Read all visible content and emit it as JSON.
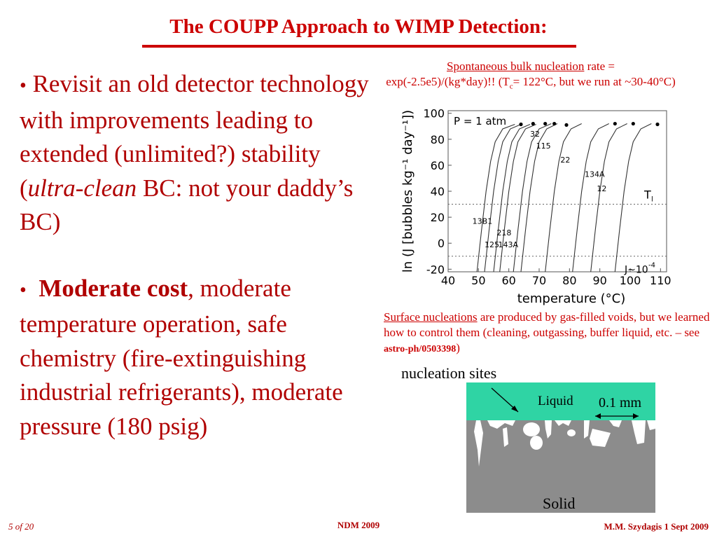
{
  "title": "The COUPP Approach to WIMP Detection:",
  "left": {
    "bullet1_bullet": "•",
    "bullet1_a": " Revisit an old detector technology with improvements leading to extended (unlimited?) stability (",
    "bullet1_ital": "ultra-clean",
    "bullet1_b": " BC: not your daddy’s BC)",
    "bullet2_bullet": "•",
    "bullet2_bold": "Moderate cost",
    "bullet2_rest": ", moderate temperature operation, safe chemistry (fire-extinguishing industrial refrigerants), moderate pressure (180 psig)"
  },
  "caption_top": {
    "link": "Spontaneous bulk nucleation",
    "rest1": " rate  =",
    "line2a": "exp(-2.5e5)/(kg*day)!! (T",
    "line2_sub": "c",
    "line2b": "= 122°C, but we run at ~30-40°C)"
  },
  "caption_mid": {
    "link": "Surface nucleations",
    "rest": " are produced by gas-filled voids, but we learned how to control them (cleaning, outgassing, buffer liquid, etc. – see ",
    "ref": "astro-ph/0503398",
    "close": ")"
  },
  "chart_data": {
    "type": "line",
    "xlabel": "temperature (°C)",
    "ylabel": "ln (J [bubbles kg⁻¹ day⁻¹])",
    "xlim": [
      40,
      112
    ],
    "ylim": [
      -22,
      102
    ],
    "xticks": [
      "40",
      "50",
      "60",
      "70",
      "80",
      "90",
      "100",
      "110"
    ],
    "yticks": [
      "100",
      "80",
      "60",
      "40",
      "20",
      "0",
      "-20"
    ],
    "annotations": {
      "p": "P = 1 atm",
      "tl": "T",
      "tl_sub": "l",
      "j": "J~10",
      "j_sup": "-4"
    },
    "hlines": [
      30,
      -10
    ],
    "series": [
      {
        "name": "13B1",
        "x": [
          49.5,
          51,
          52.5,
          54,
          55.5,
          58,
          62
        ],
        "y": [
          -22,
          10,
          40,
          63,
          78,
          88,
          91.5
        ]
      },
      {
        "name": "125",
        "x": [
          52,
          53.5,
          55,
          56.5,
          58,
          60.5,
          64
        ],
        "y": [
          -22,
          10,
          40,
          63,
          78,
          88,
          91.5
        ]
      },
      {
        "name": "218",
        "x": [
          55,
          56.5,
          58,
          59.5,
          61,
          63.5,
          67
        ],
        "y": [
          -22,
          10,
          40,
          63,
          78,
          88,
          91.5
        ]
      },
      {
        "name": "143A",
        "x": [
          57,
          58.5,
          60,
          61.5,
          63,
          65.5,
          69
        ],
        "y": [
          -22,
          10,
          40,
          63,
          78,
          88,
          91.5
        ]
      },
      {
        "name": "32",
        "x": [
          61.5,
          63,
          64.5,
          66,
          67.5,
          70,
          74
        ],
        "y": [
          -22,
          10,
          40,
          63,
          78,
          88,
          92
        ]
      },
      {
        "name": "115",
        "x": [
          64,
          65.5,
          67,
          68.5,
          70,
          72.5,
          76
        ],
        "y": [
          -22,
          10,
          40,
          63,
          78,
          88,
          92
        ]
      },
      {
        "name": "22",
        "x": [
          72,
          73.5,
          75,
          76.5,
          78,
          80.5,
          84
        ],
        "y": [
          -22,
          10,
          40,
          63,
          78,
          88,
          92
        ]
      },
      {
        "name": "134A",
        "x": [
          81,
          82.5,
          84,
          85.5,
          87,
          89.5,
          93
        ],
        "y": [
          -22,
          10,
          40,
          63,
          78,
          88,
          92
        ]
      },
      {
        "name": "12",
        "x": [
          87,
          88.5,
          90,
          91.5,
          93,
          95.5,
          99
        ],
        "y": [
          -22,
          10,
          40,
          63,
          78,
          88,
          92
        ]
      },
      {
        "name": "",
        "x": [
          95,
          96.5,
          98,
          99.5,
          101,
          103.5,
          107
        ],
        "y": [
          -22,
          10,
          40,
          63,
          78,
          88,
          92
        ]
      }
    ],
    "endpoints": [
      [
        64,
        91.5
      ],
      [
        68,
        92
      ],
      [
        72,
        92
      ],
      [
        75,
        92
      ],
      [
        79,
        91
      ],
      [
        95,
        92
      ],
      [
        101,
        92
      ],
      [
        109,
        91.5
      ]
    ],
    "curve_labels": [
      {
        "text": "13B1",
        "x": 48,
        "y": 15
      },
      {
        "text": "125",
        "x": 52,
        "y": -3
      },
      {
        "text": "218",
        "x": 56,
        "y": 6
      },
      {
        "text": "143A",
        "x": 56.5,
        "y": -3
      },
      {
        "text": "32",
        "x": 67,
        "y": 82
      },
      {
        "text": "115",
        "x": 69,
        "y": 73
      },
      {
        "text": "22",
        "x": 77,
        "y": 62
      },
      {
        "text": "134A",
        "x": 85,
        "y": 51
      },
      {
        "text": "12",
        "x": 89,
        "y": 40
      }
    ]
  },
  "micro": {
    "nucleation_sites": "nucleation sites",
    "liquid": "Liquid",
    "scale": "0.1 mm",
    "solid": "Solid",
    "colors": {
      "liquid": "#2fd4a4",
      "solid": "#8c8c8c"
    }
  },
  "footer": {
    "left": "5 of 20",
    "middle": "NDM 2009",
    "right": "M.M. Szydagis   1  Sept 2009"
  }
}
